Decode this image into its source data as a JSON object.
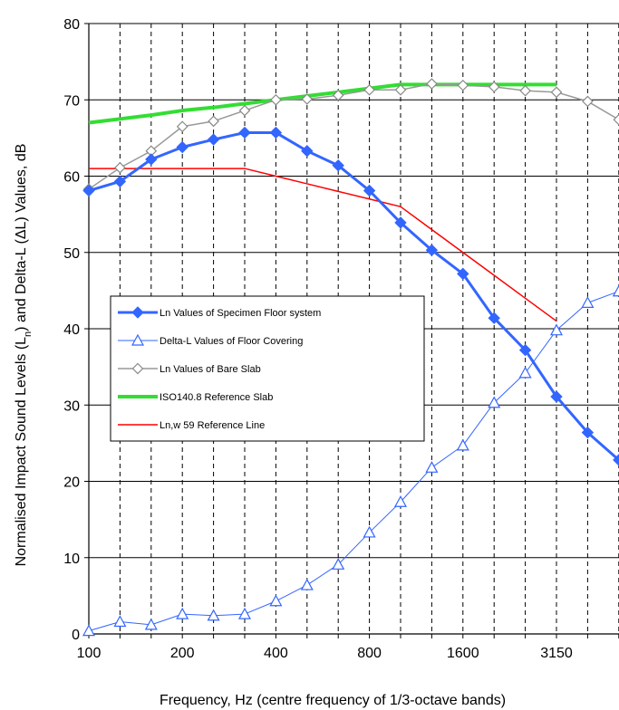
{
  "chart_data": {
    "type": "line",
    "xlabel": "Frequency, Hz (centre frequency of 1/3-octave bands)",
    "ylabel_parts": [
      "Normalised Impact Sound Levels (L",
      "n",
      ") and Delta-L (ΔL) Values, dB"
    ],
    "ylim": [
      0,
      80
    ],
    "yticks": [
      0,
      10,
      20,
      30,
      40,
      50,
      60,
      70,
      80
    ],
    "categories": [
      "100",
      "125",
      "160",
      "200",
      "250",
      "315",
      "400",
      "500",
      "630",
      "800",
      "1000",
      "1250",
      "1600",
      "2000",
      "2500",
      "3150",
      "4000",
      "5000"
    ],
    "xtick_labels": [
      {
        "index": 0,
        "label": "100"
      },
      {
        "index": 3,
        "label": "200"
      },
      {
        "index": 6,
        "label": "400"
      },
      {
        "index": 9,
        "label": "800"
      },
      {
        "index": 12,
        "label": "1600"
      },
      {
        "index": 15,
        "label": "3150"
      }
    ],
    "grid": {
      "horizontal": "solid",
      "vertical": "dashed"
    },
    "legend_placement": "center-left",
    "series": [
      {
        "name": "Ln Values of Specimen Floor system",
        "color": "#3366ff",
        "stroke_width": 3,
        "marker": "filled-diamond",
        "values": [
          58.1,
          59.3,
          62.2,
          63.8,
          64.8,
          65.7,
          65.7,
          63.3,
          61.4,
          58.1,
          53.9,
          50.3,
          47.2,
          41.4,
          37.2,
          31.1,
          26.4,
          22.8
        ]
      },
      {
        "name": "Delta-L Values of Floor Covering",
        "color": "#3366ff",
        "stroke_width": 1,
        "marker": "open-triangle",
        "values": [
          0.4,
          1.6,
          1.2,
          2.6,
          2.4,
          2.6,
          4.3,
          6.4,
          9.1,
          13.3,
          17.3,
          21.8,
          24.7,
          30.3,
          34.2,
          39.8,
          43.4,
          44.9
        ]
      },
      {
        "name": "Ln Values of Bare Slab",
        "color": "#999999",
        "stroke_width": 1.5,
        "marker": "open-diamond",
        "values": [
          58.3,
          61.1,
          63.3,
          66.5,
          67.2,
          68.6,
          70.0,
          70.1,
          70.6,
          71.3,
          71.3,
          72.1,
          71.9,
          71.7,
          71.2,
          71.0,
          69.8,
          67.4
        ]
      },
      {
        "name": "ISO140.8 Reference Slab",
        "color": "#33dd33",
        "stroke_width": 4,
        "marker": "none",
        "values": [
          67.0,
          67.5,
          68.0,
          68.6,
          69.0,
          69.5,
          70.0,
          70.5,
          71.0,
          71.5,
          72.0,
          72.0,
          72.0,
          72.0,
          72.0,
          72.0,
          null,
          null
        ]
      },
      {
        "name": "Ln,w 59 Reference Line",
        "color": "#ff0000",
        "stroke_width": 1.5,
        "marker": "none",
        "values": [
          61,
          61,
          61,
          61,
          61,
          61,
          60,
          59,
          58,
          57,
          56,
          53,
          50,
          47,
          44,
          41,
          null,
          null
        ]
      }
    ],
    "legend_labels": [
      "Ln Values of Specimen Floor system",
      "Delta-L Values of Floor Covering",
      "Ln Values of Bare Slab",
      "ISO140.8 Reference Slab",
      "Ln,w 59 Reference Line"
    ]
  }
}
